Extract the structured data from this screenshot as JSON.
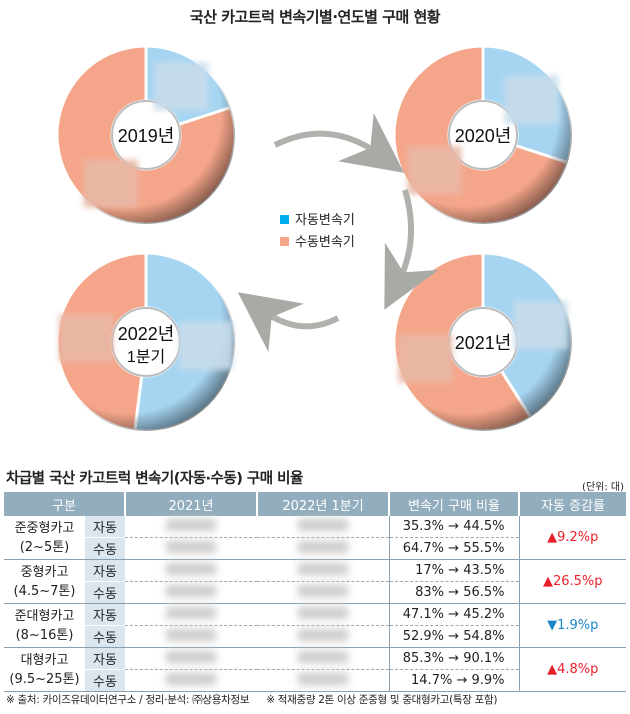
{
  "title": "국산 카고트럭 변속기별·연도별 구매 현황",
  "colors": {
    "auto": "#a6d5f2",
    "manual": "#f5a68a",
    "legend_auto": "#00aeef",
    "legend_manual": "#f5a68a",
    "header": "#92adbd",
    "up": "#e8202a",
    "down": "#1a86c8"
  },
  "legend": {
    "auto": "자동변속기",
    "manual": "수동변속기"
  },
  "chart_data": {
    "type": "pie",
    "title": "국산 카고트럭 변속기별·연도별 구매 현황",
    "note": "slice percentages estimated from slice angles; labels blurred in source",
    "series": [
      {
        "name": "2019년",
        "label1": "2019년",
        "label2": "",
        "auto": 20,
        "manual": 80
      },
      {
        "name": "2020년",
        "label1": "2020년",
        "label2": "",
        "auto": 30,
        "manual": 70
      },
      {
        "name": "2021년",
        "label1": "2021년",
        "label2": "",
        "auto": 41,
        "manual": 59
      },
      {
        "name": "2022년 1분기",
        "label1": "2022년",
        "label2": "1분기",
        "auto": 52,
        "manual": 48
      }
    ]
  },
  "table": {
    "title": "차급별 국산 카고트럭 변속기(자동·수동) 구매 비율",
    "unit": "(단위: 대)",
    "headers": [
      "구분",
      "2021년",
      "2022년 1분기",
      "변속기 구매 비율",
      "자동 증감률"
    ],
    "groups": [
      {
        "name1": "준중형카고",
        "name2": "(2~5톤)",
        "rows": [
          {
            "type": "자동",
            "ratio": "35.3% → 44.5%"
          },
          {
            "type": "수동",
            "ratio": "64.7% → 55.5%"
          }
        ],
        "change": "▲9.2%p",
        "dir": "up"
      },
      {
        "name1": "중형카고",
        "name2": "(4.5~7톤)",
        "rows": [
          {
            "type": "자동",
            "ratio": "17% → 43.5%"
          },
          {
            "type": "수동",
            "ratio": "83% → 56.5%"
          }
        ],
        "change": "▲26.5%p",
        "dir": "up"
      },
      {
        "name1": "준대형카고",
        "name2": "(8~16톤)",
        "rows": [
          {
            "type": "자동",
            "ratio": "47.1% → 45.2%"
          },
          {
            "type": "수동",
            "ratio": "52.9% → 54.8%"
          }
        ],
        "change": "▼1.9%p",
        "dir": "down"
      },
      {
        "name1": "대형카고",
        "name2": "(9.5~25톤)",
        "rows": [
          {
            "type": "자동",
            "ratio": "85.3% → 90.1%"
          },
          {
            "type": "수동",
            "ratio": "14.7%  →   9.9%"
          }
        ],
        "change": "▲4.8%p",
        "dir": "up"
      }
    ]
  },
  "footer": {
    "source": "※ 출처: 카이즈유데이터연구소 / 정리·분석: ㈜상용차정보",
    "note": "※ 적재중량 2톤 이상  준중형 및 중대형카고(특장 포함)"
  }
}
